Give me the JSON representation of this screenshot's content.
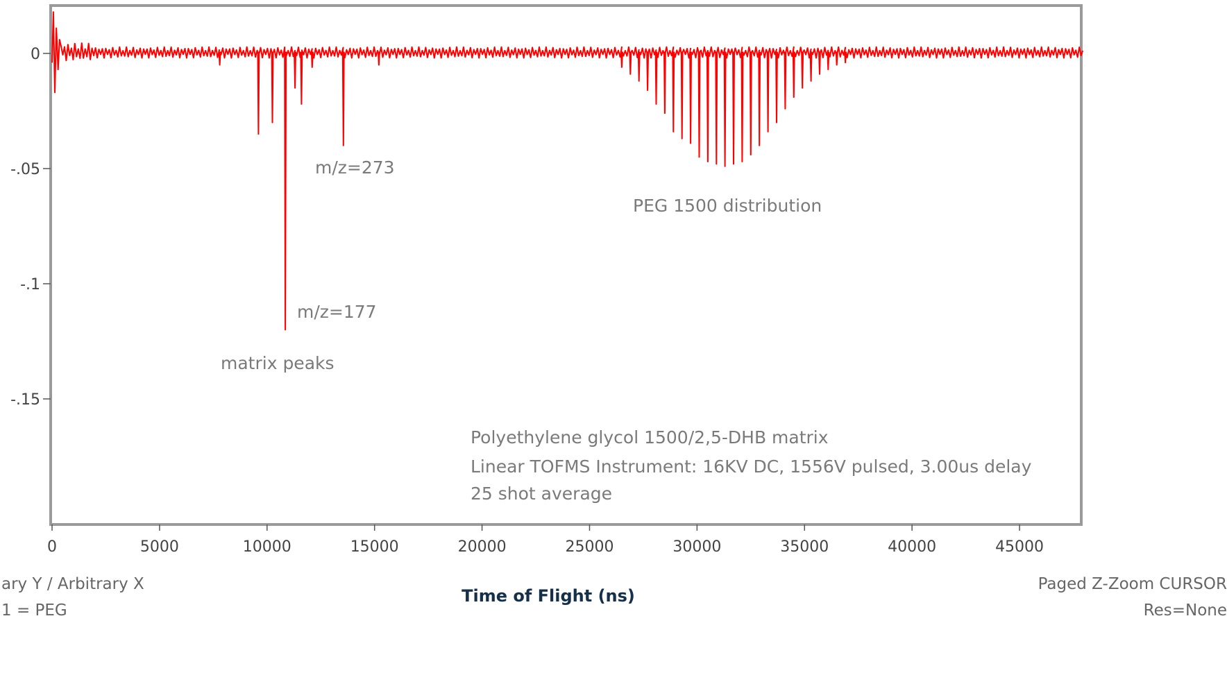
{
  "chart_data": {
    "type": "line",
    "xlabel": "Time of Flight (ns)",
    "ylabel": "",
    "xlim": [
      0,
      48000
    ],
    "ylim": [
      -0.2,
      0.02
    ],
    "x_ticks": [
      0,
      5000,
      10000,
      15000,
      20000,
      25000,
      30000,
      35000,
      40000,
      45000
    ],
    "x_tick_labels": [
      "0",
      "5000",
      "10000",
      "15000",
      "20000",
      "25000",
      "30000",
      "35000",
      "40000",
      "45000"
    ],
    "y_ticks": [
      0,
      -0.05,
      -0.1,
      -0.15
    ],
    "y_tick_labels": [
      "0",
      "-.05",
      "-.1",
      "-.15"
    ],
    "line_color": "#ff0000",
    "series": [
      {
        "baseline_ripple": 0.002,
        "initial_spike": {
          "x": [
            60,
            130,
            200,
            280,
            350
          ],
          "y": [
            0.018,
            -0.017,
            0.011,
            -0.007,
            0.006
          ]
        },
        "peaks": [
          {
            "x": 7800,
            "y": -0.005
          },
          {
            "x": 9600,
            "y": -0.035
          },
          {
            "x": 10250,
            "y": -0.03
          },
          {
            "x": 10850,
            "y": -0.12
          },
          {
            "x": 11300,
            "y": -0.015
          },
          {
            "x": 11600,
            "y": -0.022
          },
          {
            "x": 12100,
            "y": -0.006
          },
          {
            "x": 13550,
            "y": -0.04
          },
          {
            "x": 15200,
            "y": -0.005
          },
          {
            "x": 26500,
            "y": -0.006
          },
          {
            "x": 26900,
            "y": -0.009
          },
          {
            "x": 27300,
            "y": -0.012
          },
          {
            "x": 27700,
            "y": -0.016
          },
          {
            "x": 28100,
            "y": -0.022
          },
          {
            "x": 28500,
            "y": -0.026
          },
          {
            "x": 28900,
            "y": -0.034
          },
          {
            "x": 29300,
            "y": -0.037
          },
          {
            "x": 29700,
            "y": -0.039
          },
          {
            "x": 30100,
            "y": -0.045
          },
          {
            "x": 30500,
            "y": -0.047
          },
          {
            "x": 30900,
            "y": -0.048
          },
          {
            "x": 31300,
            "y": -0.049
          },
          {
            "x": 31700,
            "y": -0.048
          },
          {
            "x": 32100,
            "y": -0.047
          },
          {
            "x": 32500,
            "y": -0.044
          },
          {
            "x": 32900,
            "y": -0.04
          },
          {
            "x": 33300,
            "y": -0.034
          },
          {
            "x": 33700,
            "y": -0.03
          },
          {
            "x": 34100,
            "y": -0.024
          },
          {
            "x": 34500,
            "y": -0.019
          },
          {
            "x": 34900,
            "y": -0.015
          },
          {
            "x": 35300,
            "y": -0.012
          },
          {
            "x": 35700,
            "y": -0.009
          },
          {
            "x": 36100,
            "y": -0.007
          },
          {
            "x": 36500,
            "y": -0.005
          },
          {
            "x": 36900,
            "y": -0.004
          }
        ]
      }
    ],
    "annotations": [
      {
        "text": "m/z=273"
      },
      {
        "text": "m/z=177"
      },
      {
        "text": "matrix peaks"
      },
      {
        "text": "PEG 1500 distribution"
      },
      {
        "text": "Polyethylene glycol 1500/2,5-DHB matrix"
      },
      {
        "text": "Linear TOFMS Instrument: 16KV DC, 1556V pulsed, 3.00us delay"
      },
      {
        "text": "25 shot average"
      }
    ]
  },
  "footer": {
    "left_line1": "ary Y / Arbitrary X",
    "left_line2": "1 = PEG",
    "right_line1": "Paged   Z-Zoom CURSOR",
    "right_line2": "Res=None"
  },
  "colors": {
    "frame": "#9a9a9a",
    "trace": "#ff0000",
    "text": "#6e6e6e"
  }
}
